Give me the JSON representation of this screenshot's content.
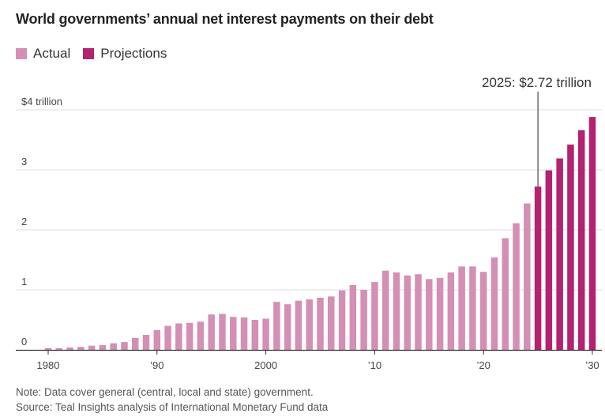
{
  "chart_data": {
    "type": "bar",
    "title": "World governments’ annual net interest payments on their debt",
    "xlabel": "",
    "ylabel": "",
    "ylim": [
      0,
      4
    ],
    "y_ticks": [
      {
        "value": 4,
        "label": "$4 trillion"
      },
      {
        "value": 3,
        "label": "3"
      },
      {
        "value": 2,
        "label": "2"
      },
      {
        "value": 1,
        "label": "1"
      },
      {
        "value": 0,
        "label": "0"
      }
    ],
    "x_ticks": [
      {
        "year": 1980,
        "label": "1980"
      },
      {
        "year": 1990,
        "label": "’90"
      },
      {
        "year": 2000,
        "label": "2000"
      },
      {
        "year": 2010,
        "label": "’10"
      },
      {
        "year": 2020,
        "label": "’20"
      },
      {
        "year": 2030,
        "label": "’30"
      }
    ],
    "legend": [
      {
        "name": "Actual",
        "color": "#d48fb4"
      },
      {
        "name": "Projections",
        "color": "#b3236f"
      }
    ],
    "grid": true,
    "series": [
      {
        "name": "Actual",
        "color": "#d48fb4",
        "x": [
          1980,
          1981,
          1982,
          1983,
          1984,
          1985,
          1986,
          1987,
          1988,
          1989,
          1990,
          1991,
          1992,
          1993,
          1994,
          1995,
          1996,
          1997,
          1998,
          1999,
          2000,
          2001,
          2002,
          2003,
          2004,
          2005,
          2006,
          2007,
          2008,
          2009,
          2010,
          2011,
          2012,
          2013,
          2014,
          2015,
          2016,
          2017,
          2018,
          2019,
          2020,
          2021,
          2022,
          2023,
          2024
        ],
        "values": [
          0.03,
          0.03,
          0.04,
          0.05,
          0.07,
          0.08,
          0.11,
          0.13,
          0.2,
          0.25,
          0.33,
          0.4,
          0.44,
          0.45,
          0.47,
          0.59,
          0.6,
          0.55,
          0.54,
          0.5,
          0.52,
          0.8,
          0.76,
          0.82,
          0.84,
          0.87,
          0.89,
          0.99,
          1.08,
          1.0,
          1.13,
          1.32,
          1.29,
          1.24,
          1.26,
          1.18,
          1.2,
          1.29,
          1.39,
          1.39,
          1.3,
          1.54,
          1.86,
          2.11,
          2.44
        ]
      },
      {
        "name": "Projections",
        "color": "#b3236f",
        "x": [
          2025,
          2026,
          2027,
          2028,
          2029,
          2030
        ],
        "values": [
          2.72,
          2.99,
          3.19,
          3.42,
          3.66,
          3.88
        ]
      }
    ],
    "annotations": [
      {
        "year": 2025,
        "value": 2.72,
        "text": "2025: $2.72 trillion"
      }
    ]
  },
  "footer": {
    "note": "Note: Data cover general (central, local and state) government.",
    "source": "Source: Teal Insights analysis of International Monetary Fund data"
  },
  "colors": {
    "actual": "#d48fb4",
    "projection": "#b3236f",
    "grid": "#dcdcdc",
    "axis": "#333333"
  }
}
